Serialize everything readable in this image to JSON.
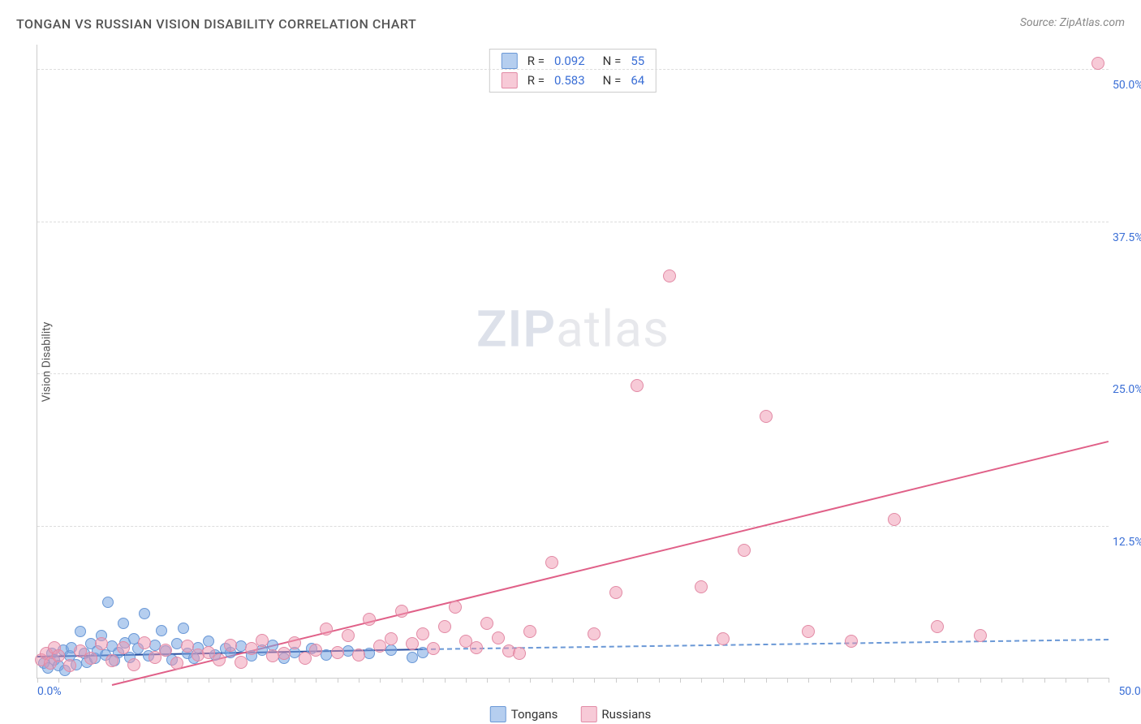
{
  "title": "TONGAN VS RUSSIAN VISION DISABILITY CORRELATION CHART",
  "source": "Source: ZipAtlas.com",
  "ylabel": "Vision Disability",
  "watermark": {
    "zip": "ZIP",
    "atlas": "atlas"
  },
  "chart": {
    "type": "scatter",
    "xlim": [
      0,
      50
    ],
    "ylim": [
      0,
      52
    ],
    "background_color": "#ffffff",
    "grid_color": "#dddddd",
    "axis_color": "#cccccc",
    "tick_label_color": "#3b6fd6",
    "tick_label_fontsize": 14,
    "y_ticks": [
      {
        "value": 12.5,
        "label": "12.5%"
      },
      {
        "value": 25.0,
        "label": "25.0%"
      },
      {
        "value": 37.5,
        "label": "37.5%"
      },
      {
        "value": 50.0,
        "label": "50.0%"
      }
    ],
    "x_origin_label": "0.0%",
    "x_max_label": "50.0%",
    "x_minor_step": 1,
    "series": [
      {
        "key": "tongans",
        "label": "Tongans",
        "color_fill": "rgba(120,165,225,0.55)",
        "color_stroke": "#6a98d6",
        "marker_radius": 7,
        "R": "0.092",
        "N": "55",
        "trend": {
          "x1": 0,
          "y1": 1.8,
          "x2": 18,
          "y2": 2.4,
          "color": "#2a4f9e",
          "width": 2,
          "dash": "solid",
          "ext_color": "#6a98d6",
          "ext_dash": "6,5",
          "ext_x2": 50,
          "ext_y2": 3.2
        },
        "points": [
          [
            0.3,
            1.2
          ],
          [
            0.5,
            0.8
          ],
          [
            0.7,
            2.0
          ],
          [
            0.8,
            1.5
          ],
          [
            1.0,
            1.0
          ],
          [
            1.2,
            2.3
          ],
          [
            1.3,
            0.6
          ],
          [
            1.5,
            1.8
          ],
          [
            1.6,
            2.5
          ],
          [
            1.8,
            1.1
          ],
          [
            2.0,
            3.8
          ],
          [
            2.2,
            2.0
          ],
          [
            2.3,
            1.3
          ],
          [
            2.5,
            2.8
          ],
          [
            2.7,
            1.6
          ],
          [
            2.8,
            2.2
          ],
          [
            3.0,
            3.5
          ],
          [
            3.2,
            1.9
          ],
          [
            3.3,
            6.2
          ],
          [
            3.5,
            2.6
          ],
          [
            3.6,
            1.4
          ],
          [
            3.8,
            2.1
          ],
          [
            4.0,
            4.5
          ],
          [
            4.1,
            2.9
          ],
          [
            4.3,
            1.7
          ],
          [
            4.5,
            3.2
          ],
          [
            4.7,
            2.4
          ],
          [
            5.0,
            5.3
          ],
          [
            5.2,
            1.8
          ],
          [
            5.5,
            2.7
          ],
          [
            5.8,
            3.9
          ],
          [
            6.0,
            2.2
          ],
          [
            6.3,
            1.5
          ],
          [
            6.5,
            2.8
          ],
          [
            6.8,
            4.1
          ],
          [
            7.0,
            2.0
          ],
          [
            7.3,
            1.6
          ],
          [
            7.5,
            2.5
          ],
          [
            8.0,
            3.0
          ],
          [
            8.3,
            1.9
          ],
          [
            8.8,
            2.4
          ],
          [
            9.0,
            2.1
          ],
          [
            9.5,
            2.6
          ],
          [
            10.0,
            1.8
          ],
          [
            10.5,
            2.3
          ],
          [
            11.0,
            2.7
          ],
          [
            11.5,
            1.6
          ],
          [
            12.0,
            2.1
          ],
          [
            12.8,
            2.4
          ],
          [
            13.5,
            1.9
          ],
          [
            14.5,
            2.2
          ],
          [
            15.5,
            2.0
          ],
          [
            16.5,
            2.3
          ],
          [
            17.5,
            1.7
          ],
          [
            18.0,
            2.1
          ]
        ]
      },
      {
        "key": "russians",
        "label": "Russians",
        "color_fill": "rgba(240,150,175,0.5)",
        "color_stroke": "#e28aa5",
        "marker_radius": 8,
        "R": "0.583",
        "N": "64",
        "trend": {
          "x1": 3.5,
          "y1": -0.5,
          "x2": 50,
          "y2": 19.5,
          "color": "#e06088",
          "width": 2,
          "dash": "solid"
        },
        "points": [
          [
            0.2,
            1.5
          ],
          [
            0.4,
            2.0
          ],
          [
            0.6,
            1.2
          ],
          [
            0.8,
            2.5
          ],
          [
            1.0,
            1.8
          ],
          [
            1.5,
            1.0
          ],
          [
            2.0,
            2.2
          ],
          [
            2.5,
            1.6
          ],
          [
            3.0,
            2.8
          ],
          [
            3.5,
            1.4
          ],
          [
            4.0,
            2.5
          ],
          [
            4.5,
            1.1
          ],
          [
            5.0,
            2.9
          ],
          [
            5.5,
            1.7
          ],
          [
            6.0,
            2.3
          ],
          [
            6.5,
            1.2
          ],
          [
            7.0,
            2.6
          ],
          [
            7.5,
            1.9
          ],
          [
            8.0,
            2.1
          ],
          [
            8.5,
            1.5
          ],
          [
            9.0,
            2.7
          ],
          [
            9.5,
            1.3
          ],
          [
            10.0,
            2.4
          ],
          [
            10.5,
            3.1
          ],
          [
            11.0,
            1.8
          ],
          [
            11.5,
            2.0
          ],
          [
            12.0,
            2.9
          ],
          [
            12.5,
            1.6
          ],
          [
            13.0,
            2.3
          ],
          [
            13.5,
            4.0
          ],
          [
            14.0,
            2.1
          ],
          [
            14.5,
            3.5
          ],
          [
            15.0,
            1.9
          ],
          [
            15.5,
            4.8
          ],
          [
            16.0,
            2.6
          ],
          [
            16.5,
            3.2
          ],
          [
            17.0,
            5.5
          ],
          [
            17.5,
            2.8
          ],
          [
            18.0,
            3.6
          ],
          [
            18.5,
            2.4
          ],
          [
            19.0,
            4.2
          ],
          [
            19.5,
            5.8
          ],
          [
            20.0,
            3.0
          ],
          [
            20.5,
            2.5
          ],
          [
            21.0,
            4.5
          ],
          [
            21.5,
            3.3
          ],
          [
            22.0,
            2.2
          ],
          [
            23.0,
            3.8
          ],
          [
            24.0,
            9.5
          ],
          [
            26.0,
            3.6
          ],
          [
            27.0,
            7.0
          ],
          [
            28.0,
            24.0
          ],
          [
            29.5,
            33.0
          ],
          [
            31.0,
            7.5
          ],
          [
            32.0,
            3.2
          ],
          [
            33.0,
            10.5
          ],
          [
            34.0,
            21.5
          ],
          [
            36.0,
            3.8
          ],
          [
            38.0,
            3.0
          ],
          [
            40.0,
            13.0
          ],
          [
            42.0,
            4.2
          ],
          [
            44.0,
            3.5
          ],
          [
            49.5,
            50.5
          ],
          [
            22.5,
            2.0
          ]
        ]
      }
    ]
  },
  "bottom_legend": [
    {
      "label": "Tongans",
      "fill": "rgba(120,165,225,0.55)",
      "stroke": "#6a98d6"
    },
    {
      "label": "Russians",
      "fill": "rgba(240,150,175,0.5)",
      "stroke": "#e28aa5"
    }
  ]
}
